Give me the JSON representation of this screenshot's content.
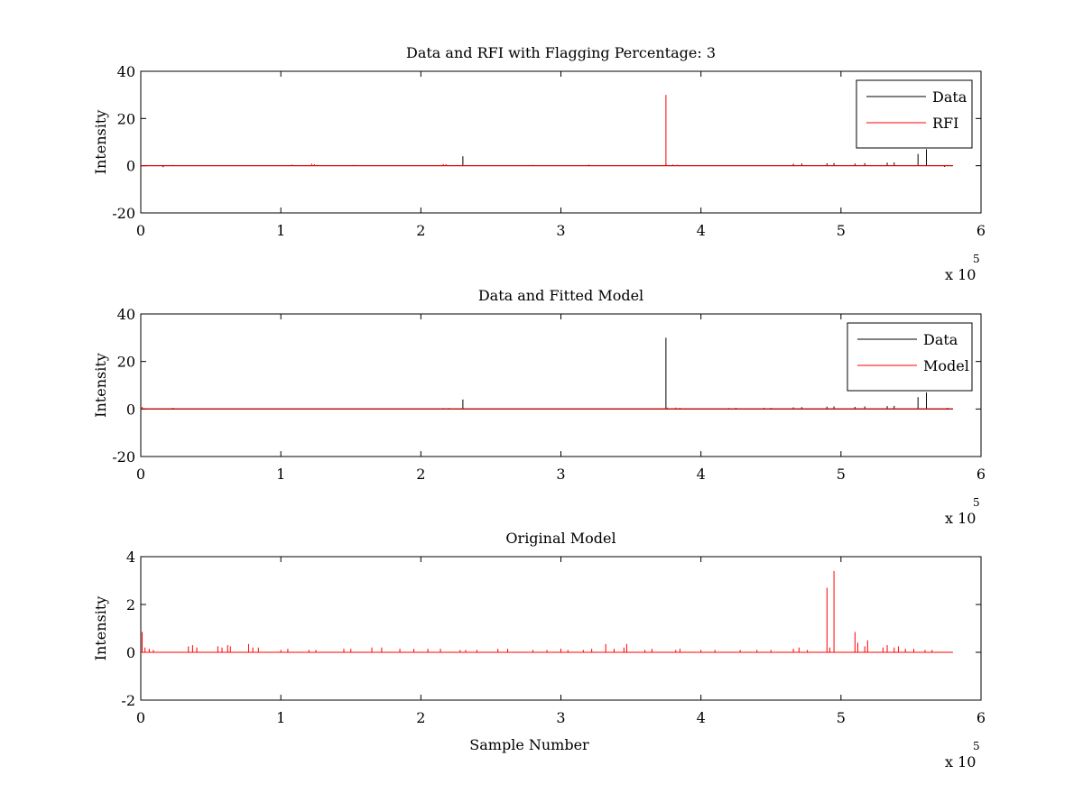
{
  "chart_data": [
    {
      "type": "line",
      "title": "Data and RFI with Flagging Percentage: 3",
      "xlabel": "",
      "ylabel": "Intensity",
      "xlim": [
        0,
        600000
      ],
      "ylim": [
        -20,
        40
      ],
      "x_multiplier": "x 10",
      "x_multiplier_exp": "5",
      "x_ticks": [
        0,
        1,
        2,
        3,
        4,
        5,
        6
      ],
      "y_ticks": [
        -20,
        0,
        20,
        40
      ],
      "legend_position": "top-right",
      "legend": [
        "Data",
        "RFI"
      ],
      "series": [
        {
          "name": "Data",
          "color": "#000000",
          "baseline": 0,
          "x_end": 580000,
          "spikes": [
            [
              16000,
              -0.6
            ],
            [
              23000,
              0.3
            ],
            [
              108000,
              0.4
            ],
            [
              152000,
              0.3
            ],
            [
              230000,
              4
            ],
            [
              280000,
              0.3
            ],
            [
              320000,
              0.4
            ],
            [
              375000,
              0.8
            ],
            [
              466000,
              0.8
            ],
            [
              472000,
              0.9
            ],
            [
              490000,
              1.0
            ],
            [
              495000,
              1.1
            ],
            [
              510000,
              0.9
            ],
            [
              517000,
              1.1
            ],
            [
              533000,
              1.3
            ],
            [
              538000,
              1.4
            ],
            [
              555000,
              5
            ],
            [
              561000,
              7
            ],
            [
              574000,
              -0.5
            ]
          ]
        },
        {
          "name": "RFI",
          "color": "#ff0000",
          "baseline": 0,
          "x_end": 580000,
          "spikes": [
            [
              122000,
              0.9
            ],
            [
              124000,
              0.6
            ],
            [
              216000,
              0.8
            ],
            [
              218000,
              0.7
            ],
            [
              375000,
              30
            ],
            [
              380000,
              0.5
            ],
            [
              383000,
              0.4
            ]
          ]
        }
      ]
    },
    {
      "type": "line",
      "title": "Data and Fitted Model",
      "xlabel": "",
      "ylabel": "Intensity",
      "xlim": [
        0,
        600000
      ],
      "ylim": [
        -20,
        40
      ],
      "x_multiplier": "x 10",
      "x_multiplier_exp": "5",
      "x_ticks": [
        0,
        1,
        2,
        3,
        4,
        5,
        6
      ],
      "y_ticks": [
        -20,
        0,
        20,
        40
      ],
      "legend_position": "top-right",
      "legend": [
        "Data",
        "Model"
      ],
      "series": [
        {
          "name": "Data",
          "color": "#000000",
          "baseline": 0,
          "x_end": 580000,
          "spikes": [
            [
              1000,
              0.8
            ],
            [
              23000,
              0.5
            ],
            [
              216000,
              0.4
            ],
            [
              220000,
              0.4
            ],
            [
              230000,
              4
            ],
            [
              375000,
              30
            ],
            [
              420000,
              0.4
            ],
            [
              425000,
              0.5
            ],
            [
              445000,
              0.5
            ],
            [
              450000,
              0.5
            ],
            [
              466000,
              0.7
            ],
            [
              472000,
              0.8
            ],
            [
              490000,
              1.0
            ],
            [
              495000,
              1.1
            ],
            [
              510000,
              0.9
            ],
            [
              517000,
              1.1
            ],
            [
              533000,
              1.2
            ],
            [
              538000,
              1.3
            ],
            [
              555000,
              5
            ],
            [
              561000,
              7
            ],
            [
              576000,
              0.5
            ]
          ]
        },
        {
          "name": "Model",
          "color": "#ff0000",
          "baseline": 0.15,
          "x_end": 580000,
          "spikes": [
            [
              1000,
              0.8
            ],
            [
              23000,
              0.4
            ],
            [
              376000,
              0.6
            ],
            [
              382000,
              0.6
            ],
            [
              385000,
              0.5
            ]
          ]
        }
      ]
    },
    {
      "type": "line",
      "title": "Original Model",
      "xlabel": "Sample Number",
      "ylabel": "Intensity",
      "xlim": [
        0,
        600000
      ],
      "ylim": [
        -2,
        4
      ],
      "x_multiplier": "x 10",
      "x_multiplier_exp": "5",
      "x_ticks": [
        0,
        1,
        2,
        3,
        4,
        5,
        6
      ],
      "y_ticks": [
        -2,
        0,
        2,
        4
      ],
      "legend_position": "none",
      "legend": [],
      "series": [
        {
          "name": "",
          "color": "#ff0000",
          "baseline": 0,
          "x_end": 580000,
          "spikes": [
            [
              1000,
              0.85
            ],
            [
              3000,
              0.2
            ],
            [
              6000,
              0.15
            ],
            [
              9000,
              0.1
            ],
            [
              34000,
              0.25
            ],
            [
              37000,
              0.3
            ],
            [
              40000,
              0.2
            ],
            [
              55000,
              0.25
            ],
            [
              58000,
              0.2
            ],
            [
              62000,
              0.3
            ],
            [
              64000,
              0.25
            ],
            [
              77000,
              0.35
            ],
            [
              80000,
              0.2
            ],
            [
              84000,
              0.2
            ],
            [
              100000,
              0.1
            ],
            [
              105000,
              0.15
            ],
            [
              120000,
              0.1
            ],
            [
              125000,
              0.1
            ],
            [
              145000,
              0.15
            ],
            [
              150000,
              0.15
            ],
            [
              165000,
              0.2
            ],
            [
              172000,
              0.2
            ],
            [
              185000,
              0.15
            ],
            [
              195000,
              0.15
            ],
            [
              205000,
              0.15
            ],
            [
              214000,
              0.15
            ],
            [
              228000,
              0.1
            ],
            [
              232000,
              0.1
            ],
            [
              240000,
              0.1
            ],
            [
              255000,
              0.15
            ],
            [
              262000,
              0.15
            ],
            [
              280000,
              0.1
            ],
            [
              290000,
              0.1
            ],
            [
              300000,
              0.15
            ],
            [
              305000,
              0.1
            ],
            [
              316000,
              0.1
            ],
            [
              322000,
              0.15
            ],
            [
              332000,
              0.35
            ],
            [
              338000,
              0.15
            ],
            [
              345000,
              0.2
            ],
            [
              347000,
              0.35
            ],
            [
              360000,
              0.1
            ],
            [
              365000,
              0.15
            ],
            [
              382000,
              0.1
            ],
            [
              385000,
              0.15
            ],
            [
              400000,
              0.1
            ],
            [
              410000,
              0.1
            ],
            [
              428000,
              0.1
            ],
            [
              440000,
              0.1
            ],
            [
              450000,
              0.1
            ],
            [
              466000,
              0.15
            ],
            [
              470000,
              0.2
            ],
            [
              476000,
              0.1
            ],
            [
              490000,
              2.7
            ],
            [
              492000,
              0.2
            ],
            [
              495000,
              3.4
            ],
            [
              510000,
              0.85
            ],
            [
              512000,
              0.4
            ],
            [
              517000,
              0.25
            ],
            [
              519000,
              0.5
            ],
            [
              530000,
              0.2
            ],
            [
              533000,
              0.3
            ],
            [
              538000,
              0.2
            ],
            [
              541000,
              0.25
            ],
            [
              546000,
              0.15
            ],
            [
              552000,
              0.15
            ],
            [
              560000,
              0.1
            ],
            [
              565000,
              0.1
            ]
          ]
        }
      ]
    }
  ]
}
